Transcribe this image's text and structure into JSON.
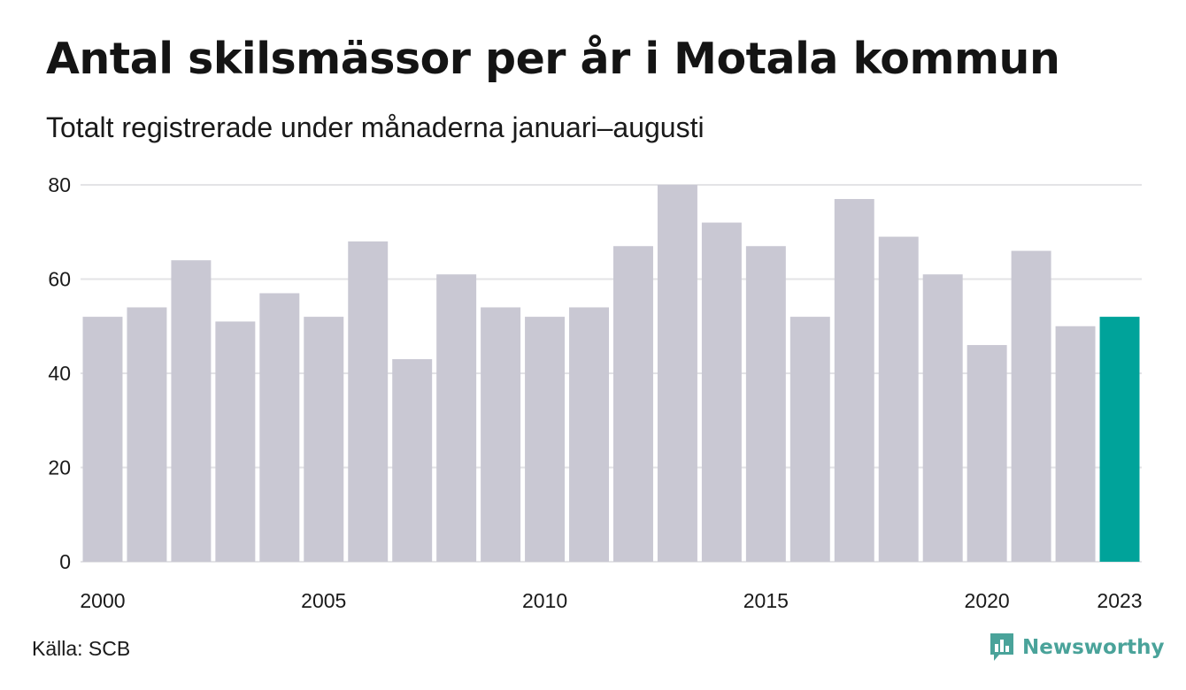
{
  "title": "Antal skilsmässor per år i Motala kommun",
  "subtitle": "Totalt registrerade under månaderna januari–augusti",
  "source": "Källa: SCB",
  "brand": {
    "name": "Newsworthy",
    "icon": "newsworthy-logo-icon",
    "color": "#4aa39a"
  },
  "colors": {
    "bar": "#c9c8d3",
    "highlight": "#00a39a",
    "grid": "#e3e3e6"
  },
  "chart_data": {
    "type": "bar",
    "categories": [
      "2000",
      "2001",
      "2002",
      "2003",
      "2004",
      "2005",
      "2006",
      "2007",
      "2008",
      "2009",
      "2010",
      "2011",
      "2012",
      "2013",
      "2014",
      "2015",
      "2016",
      "2017",
      "2018",
      "2019",
      "2020",
      "2021",
      "2022",
      "2023"
    ],
    "values": [
      52,
      54,
      64,
      51,
      57,
      52,
      68,
      43,
      61,
      54,
      52,
      54,
      67,
      80,
      72,
      67,
      52,
      77,
      69,
      61,
      46,
      66,
      50,
      52
    ],
    "highlight": "2023",
    "title": "Antal skilsmässor per år i Motala kommun",
    "xlabel": "",
    "ylabel": "",
    "ylim": [
      0,
      80
    ],
    "yticks": [
      0,
      20,
      40,
      60,
      80
    ],
    "xtick_labels": [
      "2000",
      "2005",
      "2010",
      "2015",
      "2020",
      "2023"
    ],
    "grid": true
  }
}
